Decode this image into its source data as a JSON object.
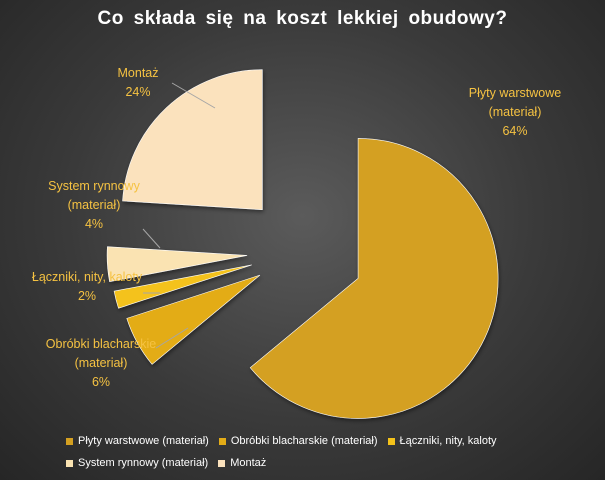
{
  "chart_data": {
    "type": "pie",
    "title": "Co składa się na koszt lekkiej obudowy?",
    "slices": [
      {
        "label": "Płyty warstwowe (materiał)",
        "value": 64,
        "color": "#d4a021",
        "data_label_lines": [
          "Płyty warstwowe",
          "(materiał)",
          "64%"
        ]
      },
      {
        "label": "Obróbki blacharskie (materiał)",
        "value": 6,
        "color": "#e3ac17",
        "data_label_lines": [
          "Obróbki blacharskie",
          "(materiał)",
          "6%"
        ]
      },
      {
        "label": "Łączniki, nity, kaloty",
        "value": 2,
        "color": "#f4c21a",
        "data_label_lines": [
          "Łączniki, nity, kaloty",
          "2%"
        ]
      },
      {
        "label": "System rynnowy (materiał)",
        "value": 4,
        "color": "#fae3b2",
        "data_label_lines": [
          "System rynnowy",
          "(materiał)",
          "4%"
        ]
      },
      {
        "label": "Montaż",
        "value": 24,
        "color": "#fbe2bd",
        "data_label_lines": [
          "Montaż",
          "24%"
        ]
      }
    ],
    "legend_position": "bottom",
    "exploded": true
  }
}
